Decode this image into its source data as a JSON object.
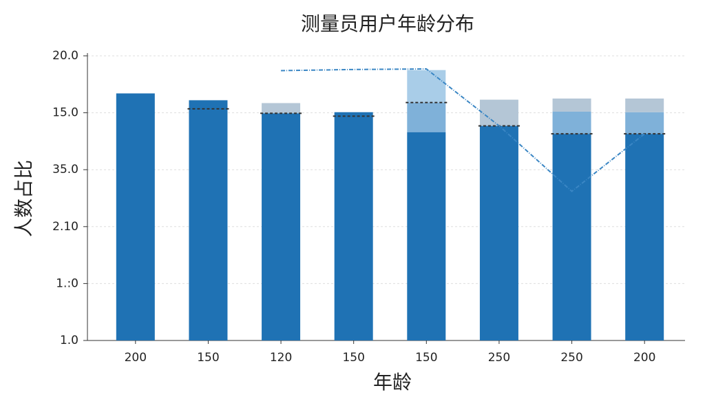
{
  "chart_data": {
    "type": "bar",
    "title": "测量员用户年龄分布",
    "x_label": "年龄",
    "y_label": "人数占比",
    "categories": [
      "200",
      "150",
      "120",
      "150",
      "150",
      "250",
      "250",
      "200"
    ],
    "series": [
      {
        "color": "#1f72b4",
        "values": [
          4.34,
          4.22,
          3.99,
          4.01,
          3.66,
          3.77,
          3.63,
          3.63
        ]
      },
      {
        "color": "#7fb1d9",
        "values": [
          null,
          null,
          null,
          null,
          0.52,
          null,
          0.39,
          0.38
        ]
      },
      {
        "color": "#b4c6d6",
        "values": [
          null,
          null,
          0.18,
          null,
          null,
          0.46,
          0.23,
          0.24
        ]
      },
      {
        "color": "#a9cde8",
        "values": [
          null,
          null,
          null,
          null,
          0.57,
          null,
          null,
          null
        ]
      }
    ],
    "markers": {
      "color": "#333333",
      "values": [
        null,
        4.07,
        3.99,
        3.94,
        4.18,
        3.77,
        3.63,
        3.63
      ]
    },
    "trend": {
      "color": "#3a86c4",
      "values": [
        null,
        null,
        4.74,
        4.76,
        4.77,
        3.77,
        2.62,
        3.63
      ]
    },
    "ylim": [
      0,
      5
    ],
    "yticks": [
      {
        "value": 0,
        "label": "1.0"
      },
      {
        "value": 1,
        "label": "1.:0"
      },
      {
        "value": 2,
        "label": "2.10"
      },
      {
        "value": 3,
        "label": "35.0"
      },
      {
        "value": 4,
        "label": "15.0"
      },
      {
        "value": 5,
        "label": "20.0"
      }
    ],
    "grid": true
  }
}
